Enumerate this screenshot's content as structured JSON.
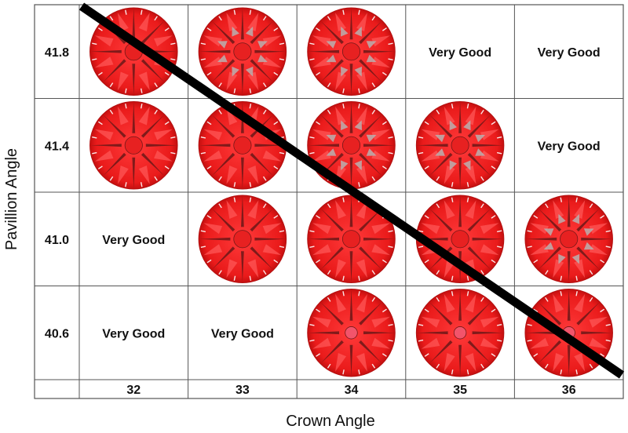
{
  "chart_data": {
    "type": "table",
    "xlabel": "Crown Angle",
    "ylabel": "Pavillion Angle",
    "x": [
      "32",
      "33",
      "34",
      "35",
      "36"
    ],
    "y": [
      "41.8",
      "41.4",
      "41.0",
      "40.6"
    ],
    "cells": [
      [
        "image",
        "image",
        "image",
        "Very Good",
        "Very Good"
      ],
      [
        "image",
        "image",
        "image",
        "image",
        "Very Good"
      ],
      [
        "Very Good",
        "image",
        "image",
        "image",
        "image"
      ],
      [
        "Very Good",
        "Very Good",
        "image",
        "image",
        "image"
      ]
    ],
    "colors": {
      "diamond_red": "#f01e1e",
      "diamond_dark": "#6b1717",
      "diamond_pink": "#f2566e",
      "diamond_gray": "#b8b0b0",
      "grid": "#555555",
      "diagonal": "#000000"
    }
  }
}
